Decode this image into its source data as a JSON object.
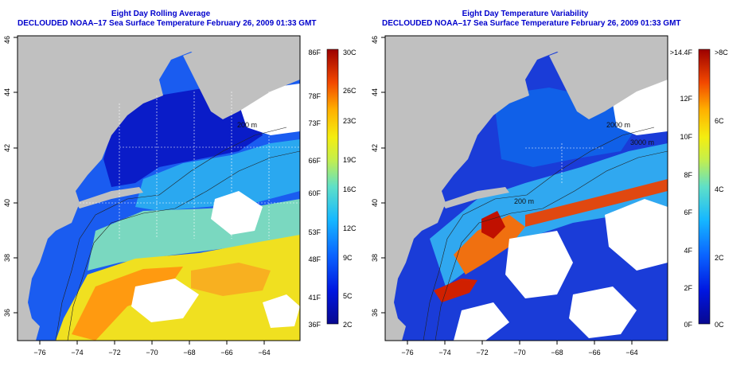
{
  "left_panel": {
    "title_line1": "Eight Day Rolling Average",
    "title_line2": "DECLOUDED NOAA–17 Sea Surface Temperature February 26, 2009 01:33 GMT",
    "lon_ticks": [
      "−76",
      "−74",
      "−72",
      "−70",
      "−68",
      "−66",
      "−64"
    ],
    "lat_ticks": [
      "36",
      "38",
      "40",
      "42",
      "44",
      "46"
    ],
    "contour_label": "200 m",
    "colorbar": {
      "left_labels": [
        "86F",
        "78F",
        "73F",
        "66F",
        "60F",
        "53F",
        "48F",
        "41F",
        "36F"
      ],
      "right_labels": [
        "30C",
        "26C",
        "23C",
        "19C",
        "16C",
        "12C",
        "9C",
        "5C",
        "2C"
      ]
    }
  },
  "right_panel": {
    "title_line1": "Eight Day Temperature Variability",
    "title_line2": "DECLOUDED NOAA–17 Sea Surface Temperature February 26, 2009 01:33 GMT",
    "lon_ticks": [
      "−76",
      "−74",
      "−72",
      "−70",
      "−68",
      "−66",
      "−64"
    ],
    "lat_ticks": [
      "36",
      "38",
      "40",
      "42",
      "44",
      "46"
    ],
    "contour_labels": [
      "200 m",
      "2000 m",
      "3000 m"
    ],
    "colorbar": {
      "left_labels": [
        ">14.4F",
        "12F",
        "10F",
        "8F",
        "6F",
        "4F",
        "2F",
        "0F"
      ],
      "right_labels": [
        ">8C",
        "6C",
        "4C",
        "2C",
        "0C"
      ]
    }
  },
  "colors": {
    "land": "#c0c0c0",
    "title": "#0000cc"
  }
}
